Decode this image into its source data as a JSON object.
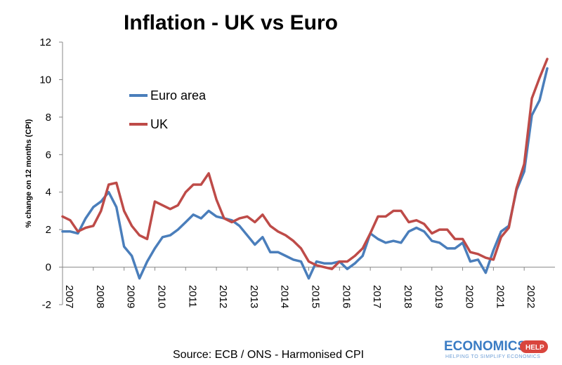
{
  "chart_data": {
    "type": "line",
    "title": "Inflation - UK vs Euro",
    "ylabel": "% change on 12 months (CPI)",
    "xlabel": "",
    "ylim": [
      -2,
      12
    ],
    "yticks": [
      "-2",
      "0",
      "2",
      "4",
      "6",
      "8",
      "10",
      "12"
    ],
    "x_tick_labels": [
      "2007",
      "2008",
      "2009",
      "2010",
      "2011",
      "2012",
      "2013",
      "2014",
      "2015",
      "2016",
      "2017",
      "2018",
      "2019",
      "2020",
      "2021",
      "2022"
    ],
    "legend_position": "top-left",
    "grid": false,
    "series": [
      {
        "name": "Euro area",
        "color": "#4a7ebb",
        "points": [
          [
            2007.0,
            1.9
          ],
          [
            2007.25,
            1.9
          ],
          [
            2007.5,
            1.8
          ],
          [
            2007.75,
            2.6
          ],
          [
            2008.0,
            3.2
          ],
          [
            2008.25,
            3.5
          ],
          [
            2008.5,
            4.0
          ],
          [
            2008.75,
            3.2
          ],
          [
            2009.0,
            1.1
          ],
          [
            2009.25,
            0.6
          ],
          [
            2009.5,
            -0.6
          ],
          [
            2009.75,
            0.3
          ],
          [
            2010.0,
            1.0
          ],
          [
            2010.25,
            1.6
          ],
          [
            2010.5,
            1.7
          ],
          [
            2010.75,
            2.0
          ],
          [
            2011.0,
            2.4
          ],
          [
            2011.25,
            2.8
          ],
          [
            2011.5,
            2.6
          ],
          [
            2011.75,
            3.0
          ],
          [
            2012.0,
            2.7
          ],
          [
            2012.25,
            2.6
          ],
          [
            2012.5,
            2.5
          ],
          [
            2012.75,
            2.2
          ],
          [
            2013.0,
            1.7
          ],
          [
            2013.25,
            1.2
          ],
          [
            2013.5,
            1.6
          ],
          [
            2013.75,
            0.8
          ],
          [
            2014.0,
            0.8
          ],
          [
            2014.25,
            0.6
          ],
          [
            2014.5,
            0.4
          ],
          [
            2014.75,
            0.3
          ],
          [
            2015.0,
            -0.6
          ],
          [
            2015.25,
            0.3
          ],
          [
            2015.5,
            0.2
          ],
          [
            2015.75,
            0.2
          ],
          [
            2016.0,
            0.3
          ],
          [
            2016.25,
            -0.1
          ],
          [
            2016.5,
            0.2
          ],
          [
            2016.75,
            0.6
          ],
          [
            2017.0,
            1.8
          ],
          [
            2017.25,
            1.5
          ],
          [
            2017.5,
            1.3
          ],
          [
            2017.75,
            1.4
          ],
          [
            2018.0,
            1.3
          ],
          [
            2018.25,
            1.9
          ],
          [
            2018.5,
            2.1
          ],
          [
            2018.75,
            1.9
          ],
          [
            2019.0,
            1.4
          ],
          [
            2019.25,
            1.3
          ],
          [
            2019.5,
            1.0
          ],
          [
            2019.75,
            1.0
          ],
          [
            2020.0,
            1.3
          ],
          [
            2020.25,
            0.3
          ],
          [
            2020.5,
            0.4
          ],
          [
            2020.75,
            -0.3
          ],
          [
            2021.0,
            0.9
          ],
          [
            2021.25,
            1.9
          ],
          [
            2021.5,
            2.2
          ],
          [
            2021.75,
            4.1
          ],
          [
            2022.0,
            5.1
          ],
          [
            2022.25,
            8.1
          ],
          [
            2022.5,
            8.9
          ],
          [
            2022.75,
            10.6
          ]
        ]
      },
      {
        "name": "UK",
        "color": "#be4b48",
        "points": [
          [
            2007.0,
            2.7
          ],
          [
            2007.25,
            2.5
          ],
          [
            2007.5,
            1.9
          ],
          [
            2007.75,
            2.1
          ],
          [
            2008.0,
            2.2
          ],
          [
            2008.25,
            3.0
          ],
          [
            2008.5,
            4.4
          ],
          [
            2008.75,
            4.5
          ],
          [
            2009.0,
            3.0
          ],
          [
            2009.25,
            2.2
          ],
          [
            2009.5,
            1.7
          ],
          [
            2009.75,
            1.5
          ],
          [
            2010.0,
            3.5
          ],
          [
            2010.25,
            3.3
          ],
          [
            2010.5,
            3.1
          ],
          [
            2010.75,
            3.3
          ],
          [
            2011.0,
            4.0
          ],
          [
            2011.25,
            4.4
          ],
          [
            2011.5,
            4.4
          ],
          [
            2011.75,
            5.0
          ],
          [
            2012.0,
            3.6
          ],
          [
            2012.25,
            2.6
          ],
          [
            2012.5,
            2.4
          ],
          [
            2012.75,
            2.6
          ],
          [
            2013.0,
            2.7
          ],
          [
            2013.25,
            2.4
          ],
          [
            2013.5,
            2.8
          ],
          [
            2013.75,
            2.2
          ],
          [
            2014.0,
            1.9
          ],
          [
            2014.25,
            1.7
          ],
          [
            2014.5,
            1.4
          ],
          [
            2014.75,
            1.0
          ],
          [
            2015.0,
            0.3
          ],
          [
            2015.25,
            0.1
          ],
          [
            2015.5,
            0.0
          ],
          [
            2015.75,
            -0.1
          ],
          [
            2016.0,
            0.3
          ],
          [
            2016.25,
            0.3
          ],
          [
            2016.5,
            0.6
          ],
          [
            2016.75,
            1.0
          ],
          [
            2017.0,
            1.8
          ],
          [
            2017.25,
            2.7
          ],
          [
            2017.5,
            2.7
          ],
          [
            2017.75,
            3.0
          ],
          [
            2018.0,
            3.0
          ],
          [
            2018.25,
            2.4
          ],
          [
            2018.5,
            2.5
          ],
          [
            2018.75,
            2.3
          ],
          [
            2019.0,
            1.8
          ],
          [
            2019.25,
            2.0
          ],
          [
            2019.5,
            2.0
          ],
          [
            2019.75,
            1.5
          ],
          [
            2020.0,
            1.5
          ],
          [
            2020.25,
            0.8
          ],
          [
            2020.5,
            0.7
          ],
          [
            2020.75,
            0.5
          ],
          [
            2021.0,
            0.4
          ],
          [
            2021.25,
            1.6
          ],
          [
            2021.5,
            2.1
          ],
          [
            2021.75,
            4.2
          ],
          [
            2022.0,
            5.5
          ],
          [
            2022.25,
            9.0
          ],
          [
            2022.5,
            10.1
          ],
          [
            2022.75,
            11.1
          ]
        ]
      }
    ]
  },
  "footer": {
    "source": "Source: ECB / ONS - Harmonised CPI"
  },
  "logo": {
    "text": "ECONOMICS",
    "badge": "HELP",
    "tagline": "HELPING TO SIMPLIFY ECONOMICS"
  }
}
